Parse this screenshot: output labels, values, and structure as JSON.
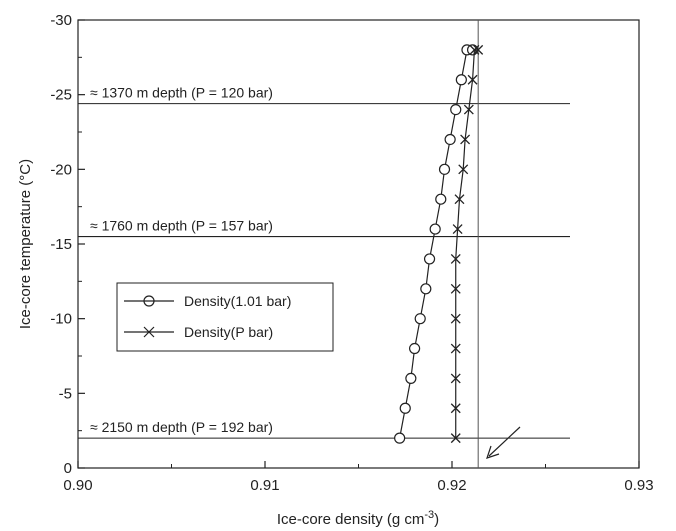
{
  "chart_data": {
    "type": "line",
    "xlabel": "Ice-core density (g cm",
    "xlabel_sup": "-3",
    "xlabel_end": ")",
    "ylabel": "Ice-core temperature (°C)",
    "xlim": [
      0.9,
      0.93
    ],
    "ylim": [
      0,
      -30
    ],
    "xticks": [
      "0.90",
      "0.91",
      "0.92",
      "0.93"
    ],
    "yticks": [
      "0",
      "-5",
      "-10",
      "-15",
      "-20",
      "-25",
      "-30"
    ],
    "grid": false,
    "legend_position": "middle-left",
    "series": [
      {
        "name": "Density(1.01 bar)",
        "marker": "circle",
        "x": [
          0.9172,
          0.9175,
          0.9178,
          0.918,
          0.9183,
          0.9186,
          0.9188,
          0.9191,
          0.9194,
          0.9196,
          0.9199,
          0.9202,
          0.9205,
          0.9208,
          0.9211
        ],
        "y": [
          -2,
          -4,
          -6,
          -8,
          -10,
          -12,
          -14,
          -16,
          -18,
          -20,
          -22,
          -24,
          -26,
          -28,
          -28
        ]
      },
      {
        "name": "Density(P bar)",
        "marker": "x",
        "x": [
          0.9202,
          0.9202,
          0.9202,
          0.9202,
          0.9202,
          0.9202,
          0.9202,
          0.9203,
          0.9204,
          0.9206,
          0.9207,
          0.9209,
          0.9211,
          0.9212,
          0.9214
        ],
        "y": [
          -2,
          -4,
          -6,
          -8,
          -10,
          -12,
          -14,
          -16,
          -18,
          -20,
          -22,
          -24,
          -26,
          -28,
          -28
        ]
      }
    ],
    "hlines": [
      {
        "y": -24.4,
        "label": "≈ 1370 m depth (P = 120 bar)"
      },
      {
        "y": -15.5,
        "label": "≈ 1760 m depth (P = 157  bar)"
      },
      {
        "y": -2.0,
        "label": "≈ 2150 m depth (P = 192 bar)"
      }
    ],
    "vline_x": 0.9214
  }
}
